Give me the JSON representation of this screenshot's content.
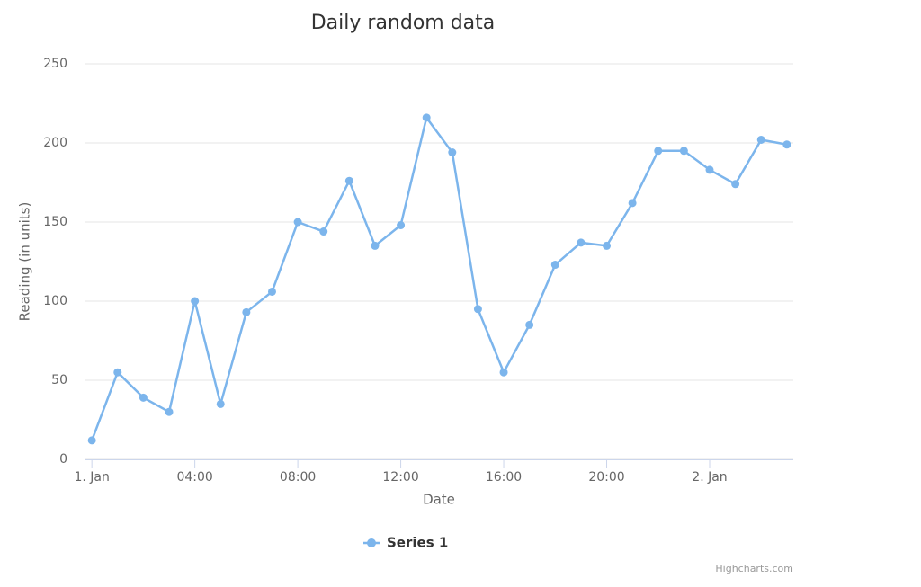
{
  "chart_data": {
    "type": "line",
    "title": "Daily random data",
    "x_axis_label": "Date",
    "y_axis_label": "Reading (in units)",
    "x": [
      0,
      1,
      2,
      3,
      4,
      5,
      6,
      7,
      8,
      9,
      10,
      11,
      12,
      13,
      14,
      15,
      16,
      17,
      18,
      19,
      20,
      21,
      22,
      23,
      24,
      25,
      26,
      27
    ],
    "series": [
      {
        "name": "Series 1",
        "color": "#7cb5ec",
        "values": [
          12,
          55,
          39,
          30,
          100,
          35,
          93,
          106,
          150,
          144,
          176,
          135,
          148,
          216,
          194,
          95,
          55,
          85,
          123,
          137,
          135,
          162,
          195,
          195,
          183,
          174,
          202,
          199
        ]
      }
    ],
    "xlim": [
      -0.25,
      27.25
    ],
    "xticks": [
      {
        "value": 0,
        "label": "1. Jan"
      },
      {
        "value": 4,
        "label": "04:00"
      },
      {
        "value": 8,
        "label": "08:00"
      },
      {
        "value": 12,
        "label": "12:00"
      },
      {
        "value": 16,
        "label": "16:00"
      },
      {
        "value": 20,
        "label": "20:00"
      },
      {
        "value": 24,
        "label": "2. Jan"
      }
    ],
    "ylim": [
      0,
      250
    ],
    "yticks": [
      0,
      50,
      100,
      150,
      200,
      250
    ],
    "grid": true,
    "legend": "bottom",
    "credits": "Highcharts.com"
  }
}
